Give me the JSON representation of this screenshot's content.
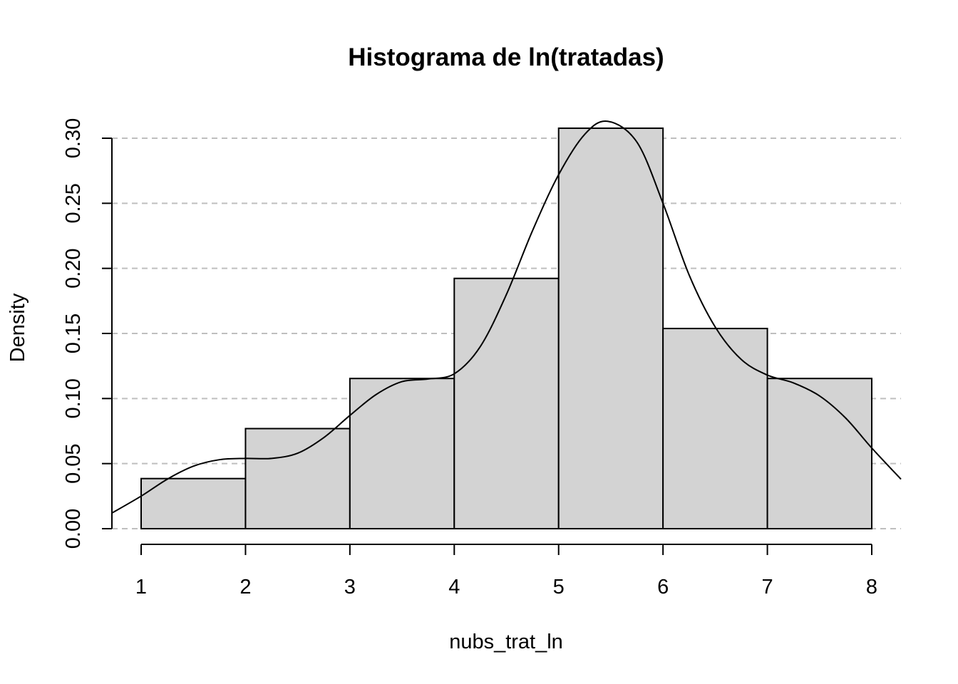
{
  "chart_data": {
    "type": "bar",
    "subtype": "histogram-with-density-curve",
    "title": "Histograma de ln(tratadas)",
    "xlabel": "nubs_trat_ln",
    "ylabel": "Density",
    "xlim": [
      0.72,
      8.28
    ],
    "ylim": [
      0,
      0.3
    ],
    "x_ticks": [
      1,
      2,
      3,
      4,
      5,
      6,
      7,
      8
    ],
    "x_tick_labels": [
      "1",
      "2",
      "3",
      "4",
      "5",
      "6",
      "7",
      "8"
    ],
    "y_ticks": [
      0.0,
      0.05,
      0.1,
      0.15,
      0.2,
      0.25,
      0.3
    ],
    "y_tick_labels": [
      "0.00",
      "0.05",
      "0.10",
      "0.15",
      "0.20",
      "0.25",
      "0.30"
    ],
    "grid": "horizontal dashed",
    "bins": [
      {
        "x0": 1,
        "x1": 2,
        "density": 0.0385
      },
      {
        "x0": 2,
        "x1": 3,
        "density": 0.0769
      },
      {
        "x0": 3,
        "x1": 4,
        "density": 0.1154
      },
      {
        "x0": 4,
        "x1": 5,
        "density": 0.1923
      },
      {
        "x0": 5,
        "x1": 6,
        "density": 0.3077
      },
      {
        "x0": 6,
        "x1": 7,
        "density": 0.1538
      },
      {
        "x0": 7,
        "x1": 8,
        "density": 0.1154
      }
    ],
    "density_curve": {
      "x": [
        0.72,
        1.0,
        1.25,
        1.5,
        1.75,
        2.0,
        2.25,
        2.5,
        2.75,
        3.0,
        3.25,
        3.5,
        3.75,
        4.0,
        4.25,
        4.5,
        4.75,
        5.0,
        5.25,
        5.47,
        5.75,
        6.0,
        6.25,
        6.5,
        6.75,
        7.0,
        7.25,
        7.5,
        7.75,
        8.0,
        8.28
      ],
      "y": [
        0.012,
        0.025,
        0.038,
        0.048,
        0.053,
        0.054,
        0.054,
        0.058,
        0.07,
        0.087,
        0.103,
        0.113,
        0.115,
        0.119,
        0.14,
        0.18,
        0.229,
        0.272,
        0.303,
        0.313,
        0.297,
        0.25,
        0.195,
        0.155,
        0.13,
        0.118,
        0.112,
        0.102,
        0.085,
        0.062,
        0.038
      ]
    }
  }
}
